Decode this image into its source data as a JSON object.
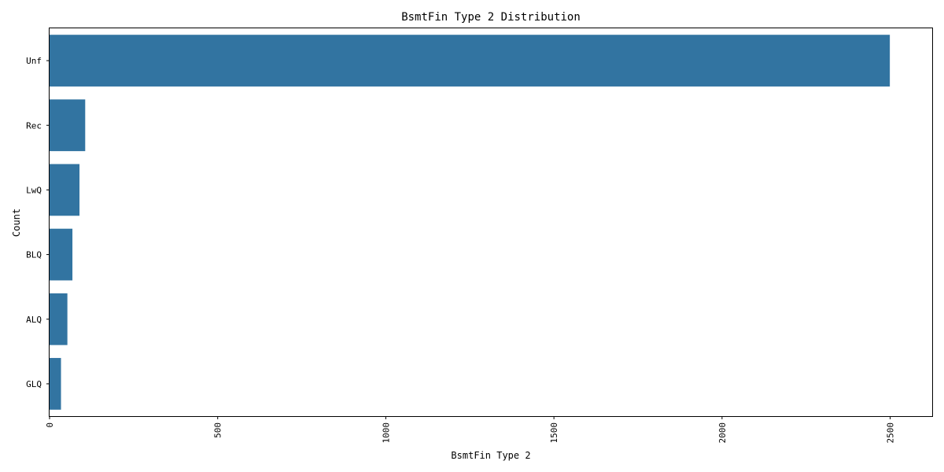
{
  "chart_data": {
    "type": "bar",
    "orientation": "horizontal",
    "title": "BsmtFin Type 2 Distribution",
    "xlabel": "BsmtFin Type 2",
    "ylabel": "Count",
    "categories": [
      "Unf",
      "Rec",
      "LwQ",
      "BLQ",
      "ALQ",
      "GLQ"
    ],
    "values": [
      2499,
      106,
      89,
      68,
      53,
      34
    ],
    "xlim": [
      0,
      2625
    ],
    "xticks": [
      0,
      500,
      1000,
      1500,
      2000,
      2500
    ],
    "xtick_labels": [
      "0",
      "500",
      "1000",
      "1500",
      "2000",
      "2500"
    ],
    "xtick_rotation": 90,
    "grid": false,
    "bar_color": "#3274a1"
  }
}
